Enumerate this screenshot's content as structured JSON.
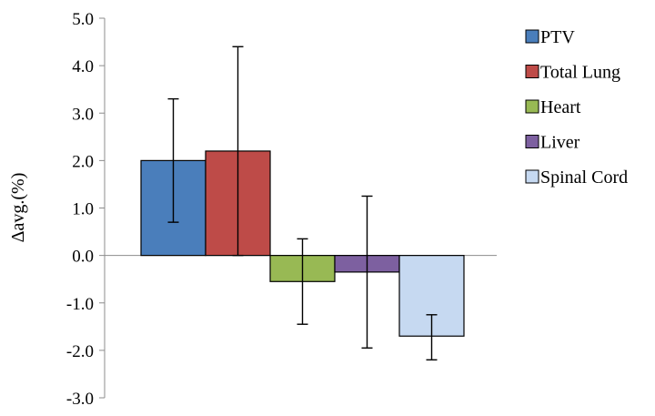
{
  "chart_data": {
    "type": "bar",
    "title": "",
    "xlabel": "",
    "ylabel": "Δavg.(%)",
    "ylim": [
      -3.0,
      5.0
    ],
    "yticks": [
      "5.0",
      "4.0",
      "3.0",
      "2.0",
      "1.0",
      "0.0",
      "-1.0",
      "-2.0",
      "-3.0"
    ],
    "grid": false,
    "legend_position": "right",
    "series": [
      {
        "name": "PTV",
        "value": 2.0,
        "error_low": 0.7,
        "error_high": 3.3,
        "color": "#4a7ebb"
      },
      {
        "name": "Total Lung",
        "value": 2.2,
        "error_low": 0.0,
        "error_high": 4.4,
        "color": "#be4b48"
      },
      {
        "name": "Heart",
        "value": -0.55,
        "error_low": -1.45,
        "error_high": 0.35,
        "color": "#98b954"
      },
      {
        "name": "Liver",
        "value": -0.35,
        "error_low": -1.95,
        "error_high": 1.25,
        "color": "#7d60a0"
      },
      {
        "name": "Spinal Cord",
        "value": -1.7,
        "error_low": -2.2,
        "error_high": -1.25,
        "color": "#c6d9f1"
      }
    ]
  }
}
